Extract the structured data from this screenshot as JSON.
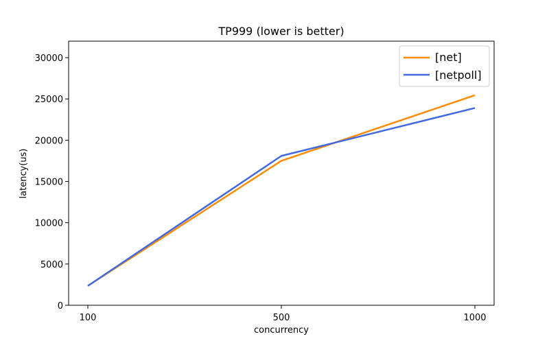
{
  "chart_data": {
    "type": "line",
    "title": "TP999 (lower is better)",
    "xlabel": "concurrency",
    "ylabel": "latency(us)",
    "categories": [
      "100",
      "500",
      "1000"
    ],
    "x": [
      100,
      500,
      1000
    ],
    "ylim": [
      0,
      32000
    ],
    "yticks": [
      0,
      5000,
      10000,
      15000,
      20000,
      25000,
      30000
    ],
    "grid": false,
    "legend_position": "top-right",
    "series": [
      {
        "name": "[net]",
        "color": "#ff8c00",
        "values": [
          2350,
          17500,
          25450
        ]
      },
      {
        "name": "[netpoll]",
        "color": "#4169e1",
        "values": [
          2350,
          18100,
          23900
        ]
      }
    ]
  }
}
